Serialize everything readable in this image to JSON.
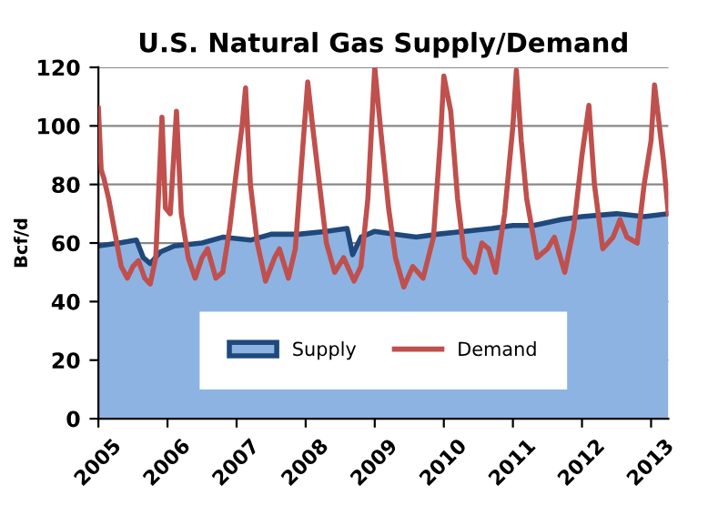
{
  "chart_data": {
    "type": "area",
    "title": "U.S. Natural Gas Supply/Demand",
    "ylabel": "Bcf/d",
    "xlim": [
      2005,
      2013.25
    ],
    "xticks": [
      2005,
      2006,
      2007,
      2008,
      2009,
      2010,
      2011,
      2012,
      2013
    ],
    "ylim": [
      0,
      120
    ],
    "yticks": [
      0,
      20,
      40,
      60,
      80,
      100,
      120
    ],
    "grid": "y",
    "legend": "bottom",
    "series": [
      {
        "name": "Supply",
        "color": "#8db3e2",
        "x": [
          2005,
          2005.3,
          2005.55,
          2005.65,
          2005.75,
          2005.9,
          2006.1,
          2006.5,
          2006.8,
          2007.2,
          2007.5,
          2007.9,
          2008.3,
          2008.6,
          2008.68,
          2008.8,
          2009.0,
          2009.3,
          2009.6,
          2009.9,
          2010.3,
          2010.7,
          2011.0,
          2011.3,
          2011.7,
          2012.0,
          2012.5,
          2012.9,
          2013.25
        ],
        "values": [
          59,
          60,
          61,
          55,
          53,
          57,
          59,
          60,
          62,
          61,
          63,
          63,
          64,
          65,
          56,
          62,
          64,
          63,
          62,
          63,
          64,
          65,
          66,
          66,
          68,
          69,
          70,
          69,
          70
        ]
      },
      {
        "name": "Demand",
        "type": "line",
        "color": "#c0504d",
        "x": [
          2005.0,
          2005.04,
          2005.08,
          2005.15,
          2005.25,
          2005.33,
          2005.42,
          2005.5,
          2005.58,
          2005.67,
          2005.75,
          2005.83,
          2005.92,
          2005.97,
          2006.04,
          2006.13,
          2006.2,
          2006.3,
          2006.4,
          2006.5,
          2006.58,
          2006.7,
          2006.8,
          2006.9,
          2007.0,
          2007.08,
          2007.13,
          2007.2,
          2007.3,
          2007.42,
          2007.55,
          2007.62,
          2007.75,
          2007.85,
          2007.95,
          2008.03,
          2008.1,
          2008.2,
          2008.3,
          2008.42,
          2008.55,
          2008.7,
          2008.8,
          2008.9,
          2009.0,
          2009.08,
          2009.2,
          2009.3,
          2009.42,
          2009.55,
          2009.7,
          2009.85,
          2009.95,
          2010.0,
          2010.1,
          2010.2,
          2010.3,
          2010.45,
          2010.55,
          2010.65,
          2010.75,
          2010.88,
          2011.0,
          2011.05,
          2011.12,
          2011.2,
          2011.35,
          2011.5,
          2011.6,
          2011.75,
          2011.88,
          2012.0,
          2012.1,
          2012.18,
          2012.3,
          2012.45,
          2012.55,
          2012.65,
          2012.8,
          2012.9,
          2013.0,
          2013.05,
          2013.12,
          2013.18,
          2013.25
        ],
        "values": [
          106,
          85,
          82,
          75,
          62,
          52,
          48,
          52,
          54,
          48,
          46,
          55,
          103,
          72,
          70,
          105,
          70,
          55,
          48,
          55,
          58,
          48,
          50,
          65,
          85,
          100,
          113,
          80,
          60,
          47,
          55,
          58,
          48,
          58,
          90,
          115,
          100,
          80,
          60,
          50,
          55,
          47,
          52,
          75,
          120,
          100,
          72,
          55,
          45,
          52,
          48,
          62,
          95,
          117,
          105,
          75,
          55,
          50,
          60,
          58,
          50,
          70,
          100,
          119,
          95,
          75,
          55,
          58,
          62,
          50,
          65,
          90,
          107,
          80,
          58,
          62,
          68,
          62,
          60,
          80,
          95,
          114,
          100,
          88,
          70
        ]
      }
    ]
  }
}
